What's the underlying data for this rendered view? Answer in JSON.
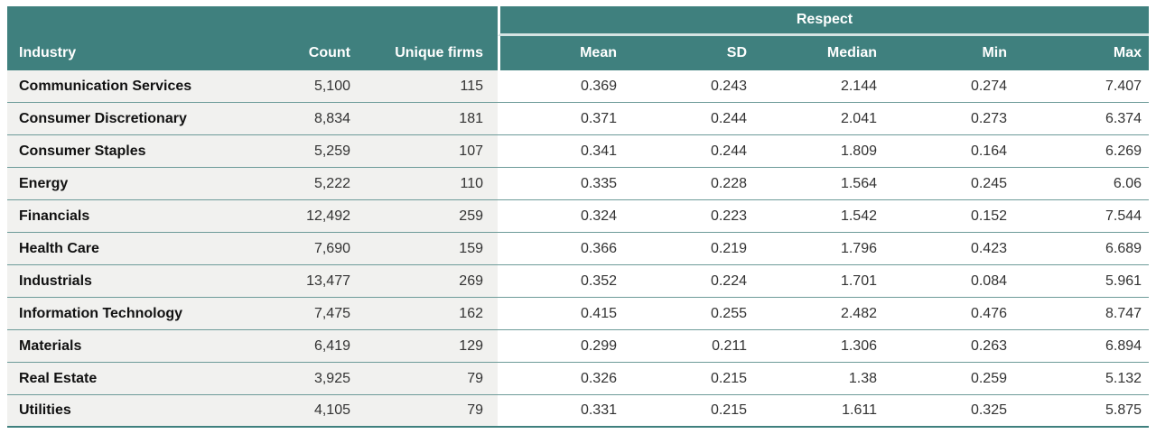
{
  "colors": {
    "header_teal": "#3F807E",
    "band_divider": "#D6E4E3",
    "row_line": "#6D9B99",
    "left_section_bg": "#F1F1EF",
    "industry_text": "#111111",
    "value_text": "#333333",
    "header_text": "#FFFFFF"
  },
  "chart_data": {
    "type": "table",
    "group_header": "Respect",
    "group_header_spans": [
      "Mean",
      "SD",
      "Median",
      "Min",
      "Max"
    ],
    "columns": [
      "Industry",
      "Count",
      "Unique firms",
      "Mean",
      "SD",
      "Median",
      "Min",
      "Max"
    ],
    "rows": [
      [
        "Communication Services",
        "5,100",
        "115",
        "0.369",
        "0.243",
        "2.144",
        "0.274",
        "7.407"
      ],
      [
        "Consumer Discretionary",
        "8,834",
        "181",
        "0.371",
        "0.244",
        "2.041",
        "0.273",
        "6.374"
      ],
      [
        "Consumer Staples",
        "5,259",
        "107",
        "0.341",
        "0.244",
        "1.809",
        "0.164",
        "6.269"
      ],
      [
        "Energy",
        "5,222",
        "110",
        "0.335",
        "0.228",
        "1.564",
        "0.245",
        "6.06"
      ],
      [
        "Financials",
        "12,492",
        "259",
        "0.324",
        "0.223",
        "1.542",
        "0.152",
        "7.544"
      ],
      [
        "Health Care",
        "7,690",
        "159",
        "0.366",
        "0.219",
        "1.796",
        "0.423",
        "6.689"
      ],
      [
        "Industrials",
        "13,477",
        "269",
        "0.352",
        "0.224",
        "1.701",
        "0.084",
        "5.961"
      ],
      [
        "Information Technology",
        "7,475",
        "162",
        "0.415",
        "0.255",
        "2.482",
        "0.476",
        "8.747"
      ],
      [
        "Materials",
        "6,419",
        "129",
        "0.299",
        "0.211",
        "1.306",
        "0.263",
        "6.894"
      ],
      [
        "Real Estate",
        "3,925",
        "79",
        "0.326",
        "0.215",
        "1.38",
        "0.259",
        "5.132"
      ],
      [
        "Utilities",
        "4,105",
        "79",
        "0.331",
        "0.215",
        "1.611",
        "0.325",
        "5.875"
      ]
    ]
  }
}
